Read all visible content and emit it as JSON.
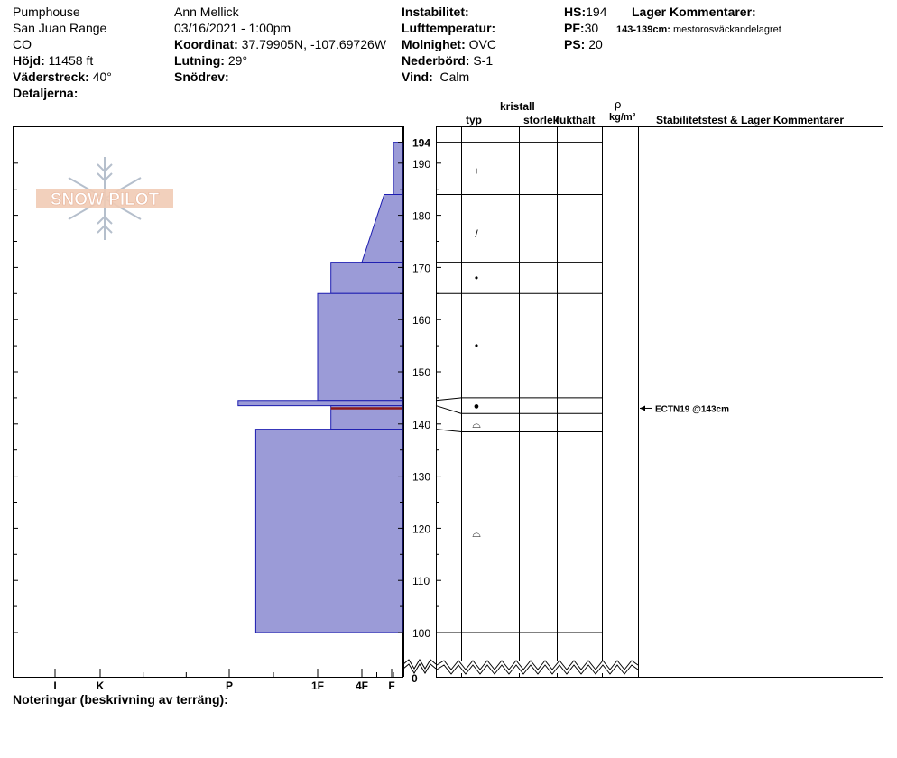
{
  "header": {
    "location": "Pumphouse",
    "range": "San Juan Range",
    "state": "CO",
    "elevation_label": "Höjd:",
    "elevation_value": "11458 ft",
    "aspect_label": "Väderstreck:",
    "aspect_value": "40°",
    "details_label": "Detaljerna:",
    "observer": "Ann Mellick",
    "datetime": "03/16/2021 - 1:00pm",
    "coord_label": "Koordinat:",
    "coord_value": "37.79905N, -107.69726W",
    "slope_label": "Lutning:",
    "slope_value": "29°",
    "drift_label": "Snödrev:",
    "instability_label": "Instabilitet:",
    "airtemp_label": "Lufttemperatur:",
    "cloud_label": "Molnighet:",
    "cloud_value": "OVC",
    "precip_label": "Nederbörd:",
    "precip_value": "S-1",
    "wind_label": "Vind:",
    "wind_value": "Calm",
    "hs_label": "HS:",
    "hs_value": "194",
    "pf_label": "PF:",
    "pf_value": "30",
    "ps_label": "PS:",
    "ps_value": "20",
    "layer_comments_label": "Lager Kommentarer:",
    "layer_comment_depth": "143-139cm:",
    "layer_comment_text": "mestorosväckandelagret"
  },
  "columns": {
    "crystal": "kristall",
    "type": "typ",
    "size": "storlek",
    "moisture": "fukthalt",
    "rho": "ρ",
    "density_unit": "kg/m³",
    "stability": "Stabilitetstest & Lager Kommentarer"
  },
  "notes_label": "Noteringar (beskrivning av terräng):",
  "logo_text": "SNOW PILOT",
  "stability_test": {
    "label": "ECTN19 @143cm",
    "depth": 143
  },
  "colors": {
    "fill": "#9b9bd7",
    "stroke": "#1c1cb0",
    "critical": "#8b1a1a"
  },
  "chart_data": {
    "type": "bar",
    "ylim": [
      0,
      194
    ],
    "y_axis_break": [
      0,
      100
    ],
    "yticks": [
      100,
      110,
      120,
      130,
      140,
      150,
      160,
      170,
      180,
      190
    ],
    "top_label": "194",
    "x_categories": [
      "I",
      "K",
      "P",
      "1F",
      "4F",
      "F"
    ],
    "x_category_values": [
      1,
      2,
      5,
      7,
      8,
      8.8
    ],
    "hand_hardness_layers": [
      {
        "top": 194,
        "bottom": 184,
        "hardness": 9.0
      },
      {
        "top": 184,
        "bottom": 171,
        "hardness": 8.6,
        "hardness_bottom": 8.0
      },
      {
        "top": 171,
        "bottom": 165,
        "hardness": 7.3
      },
      {
        "top": 165,
        "bottom": 144.5,
        "hardness": 7.0
      },
      {
        "top": 144.5,
        "bottom": 143.5,
        "hardness": 5.2
      },
      {
        "top": 143.5,
        "bottom": 139,
        "hardness": 7.3
      },
      {
        "top": 139,
        "bottom": 100,
        "hardness": 5.6
      }
    ],
    "critical_layer_depth": 143,
    "layer_boundaries": [
      194,
      184,
      171,
      165,
      145,
      142,
      138.5,
      100
    ],
    "grain_symbols": [
      {
        "depth": 188.5,
        "symbol": "+"
      },
      {
        "depth": 176.5,
        "symbol": "/"
      },
      {
        "depth": 168,
        "symbol": "•"
      },
      {
        "depth": 155,
        "symbol": "•"
      },
      {
        "depth": 143.5,
        "symbol": "●"
      },
      {
        "depth": 140,
        "symbol": "⌓"
      },
      {
        "depth": 119,
        "symbol": "⌓"
      }
    ]
  }
}
